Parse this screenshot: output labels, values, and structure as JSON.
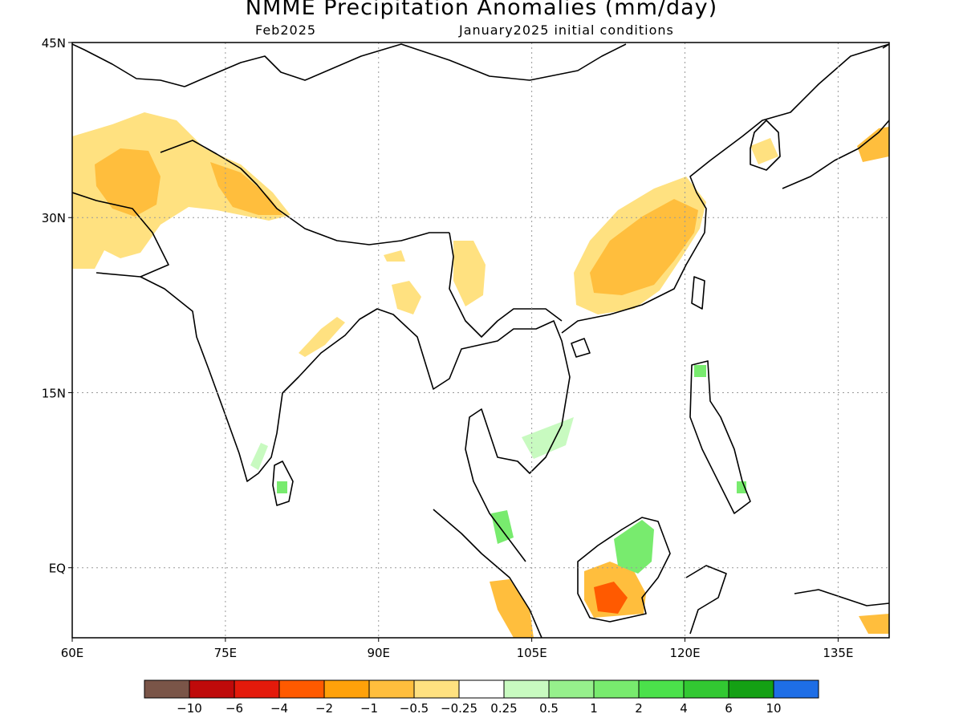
{
  "title": "NMME Precipitation Anomalies (mm/day)",
  "subtitle_left": "Feb2025",
  "subtitle_right": "January2025 initial conditions",
  "map": {
    "lon_range": [
      60,
      140
    ],
    "lat_range": [
      -6,
      45
    ],
    "lon_ticks": [
      {
        "value": 60,
        "label": "60E"
      },
      {
        "value": 75,
        "label": "75E"
      },
      {
        "value": 90,
        "label": "90E"
      },
      {
        "value": 105,
        "label": "105E"
      },
      {
        "value": 120,
        "label": "120E"
      },
      {
        "value": 135,
        "label": "135E"
      }
    ],
    "lat_ticks": [
      {
        "value": 45,
        "label": "45N"
      },
      {
        "value": 30,
        "label": "30N"
      },
      {
        "value": 15,
        "label": "15N"
      },
      {
        "value": 0,
        "label": "EQ"
      }
    ],
    "grid": "dotted"
  },
  "colorbar": {
    "colors": [
      "#7a5548",
      "#bf0a0a",
      "#e41a0b",
      "#ff5a00",
      "#ffa10a",
      "#ffbe3d",
      "#ffe180",
      "#ffffff",
      "#c8fac0",
      "#96f08c",
      "#78eb6e",
      "#4be14b",
      "#32c832",
      "#14a014",
      "#1e6ee6"
    ],
    "labels": [
      "−10",
      "−6",
      "−4",
      "−2",
      "−1",
      "−0.5",
      "−0.25",
      "0.25",
      "0.5",
      "1",
      "2",
      "4",
      "6",
      "10"
    ]
  }
}
